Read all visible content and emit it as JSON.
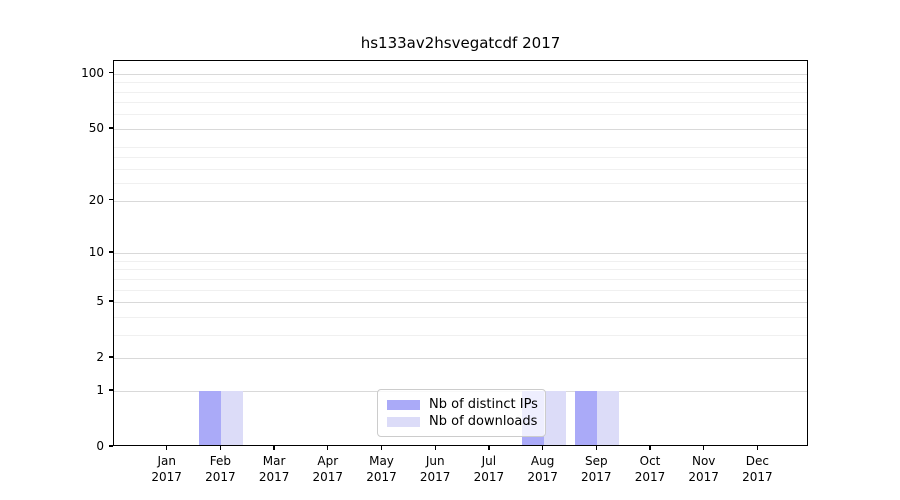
{
  "title": "hs133av2hsvegatcdf 2017",
  "colors": {
    "bar_distinct_ips": "#aaaaf8",
    "bar_downloads": "#dcdcf8",
    "grid_major": "#d9d9d9",
    "grid_minor": "#f0f0f0",
    "axis_spine": "#000000"
  },
  "chart_data": {
    "type": "bar",
    "title": "hs133av2hsvegatcdf 2017",
    "xlabel": "",
    "ylabel": "",
    "x_tick_year": "2017",
    "categories": [
      "Jan",
      "Feb",
      "Mar",
      "Apr",
      "May",
      "Jun",
      "Jul",
      "Aug",
      "Sep",
      "Oct",
      "Nov",
      "Dec"
    ],
    "series": [
      {
        "name": "Nb of distinct IPs",
        "color": "#aaaaf8",
        "values": [
          0,
          1,
          0,
          0,
          0,
          0,
          0,
          1,
          1,
          0,
          0,
          0
        ]
      },
      {
        "name": "Nb of downloads",
        "color": "#dcdcf8",
        "values": [
          0,
          1,
          0,
          0,
          0,
          0,
          0,
          1,
          1,
          0,
          0,
          0
        ]
      }
    ],
    "y_scale": "log1p",
    "y_ticks": [
      0,
      1,
      2,
      5,
      10,
      20,
      50,
      100
    ],
    "y_minor_ticks": [
      3,
      4,
      6,
      7,
      8,
      9,
      25,
      30,
      35,
      40,
      60,
      70,
      80,
      90
    ],
    "ylim": [
      0,
      117
    ],
    "grid": "on",
    "legend_position": "lower center"
  }
}
